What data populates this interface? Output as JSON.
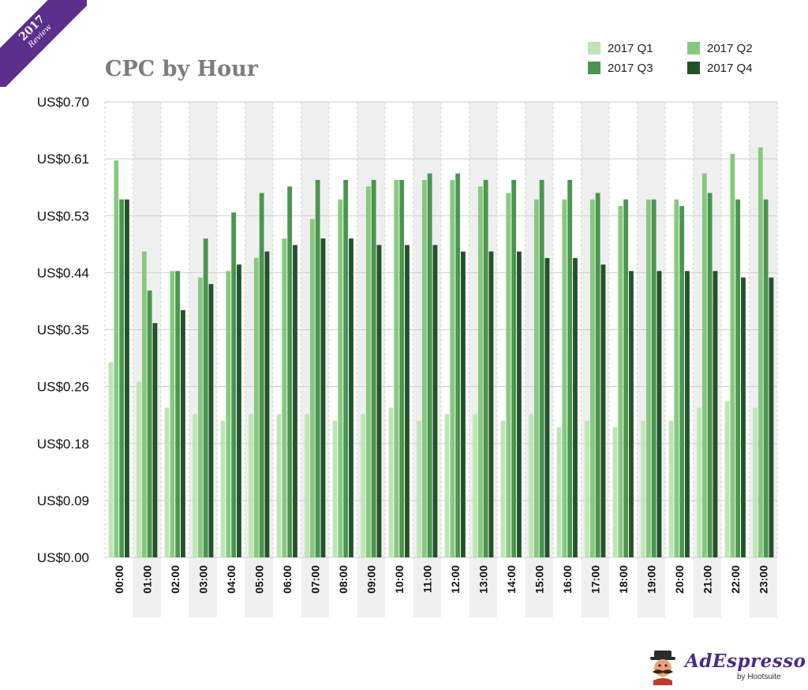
{
  "badge": {
    "year": "2017",
    "label": "Review"
  },
  "colors": {
    "q1": "#bfe4b6",
    "q2": "#86c97e",
    "q3": "#4a9650",
    "q4": "#24512a",
    "band": "#efefef",
    "grid": "#cfcfcf",
    "title": "#7d7d7d",
    "badge": "#5b2f8c",
    "logo": "#4a2a86"
  },
  "logo": {
    "name": "AdEspresso",
    "byline": "by Hootsuite",
    "icon": "mustached-man-icon"
  },
  "chart_data": {
    "type": "bar",
    "title": "CPC by Hour",
    "xlabel": "",
    "ylabel": "",
    "ylim": [
      0,
      0.7
    ],
    "grid": true,
    "legend_position": "top-right",
    "y_ticks": [
      "US$0.00",
      "US$0.09",
      "US$0.18",
      "US$0.26",
      "US$0.35",
      "US$0.44",
      "US$0.53",
      "US$0.61",
      "US$0.70"
    ],
    "categories": [
      "00:00",
      "01:00",
      "02:00",
      "03:00",
      "04:00",
      "05:00",
      "06:00",
      "07:00",
      "08:00",
      "09:00",
      "10:00",
      "11:00",
      "12:00",
      "13:00",
      "14:00",
      "15:00",
      "16:00",
      "17:00",
      "18:00",
      "19:00",
      "20:00",
      "21:00",
      "22:00",
      "23:00"
    ],
    "series": [
      {
        "name": "2017 Q1",
        "values": [
          0.3,
          0.27,
          0.23,
          0.22,
          0.21,
          0.22,
          0.22,
          0.22,
          0.21,
          0.22,
          0.23,
          0.21,
          0.22,
          0.22,
          0.21,
          0.22,
          0.2,
          0.21,
          0.2,
          0.21,
          0.21,
          0.23,
          0.24,
          0.23
        ]
      },
      {
        "name": "2017 Q2",
        "values": [
          0.61,
          0.47,
          0.44,
          0.43,
          0.44,
          0.46,
          0.49,
          0.52,
          0.55,
          0.57,
          0.58,
          0.58,
          0.58,
          0.57,
          0.56,
          0.55,
          0.55,
          0.55,
          0.54,
          0.55,
          0.55,
          0.59,
          0.62,
          0.63
        ]
      },
      {
        "name": "2017 Q3",
        "values": [
          0.55,
          0.41,
          0.44,
          0.49,
          0.53,
          0.56,
          0.57,
          0.58,
          0.58,
          0.58,
          0.58,
          0.59,
          0.59,
          0.58,
          0.58,
          0.58,
          0.58,
          0.56,
          0.55,
          0.55,
          0.54,
          0.56,
          0.55,
          0.55
        ]
      },
      {
        "name": "2017 Q4",
        "values": [
          0.55,
          0.36,
          0.38,
          0.42,
          0.45,
          0.47,
          0.48,
          0.49,
          0.49,
          0.48,
          0.48,
          0.48,
          0.47,
          0.47,
          0.47,
          0.46,
          0.46,
          0.45,
          0.44,
          0.44,
          0.44,
          0.44,
          0.43,
          0.43
        ]
      }
    ]
  }
}
